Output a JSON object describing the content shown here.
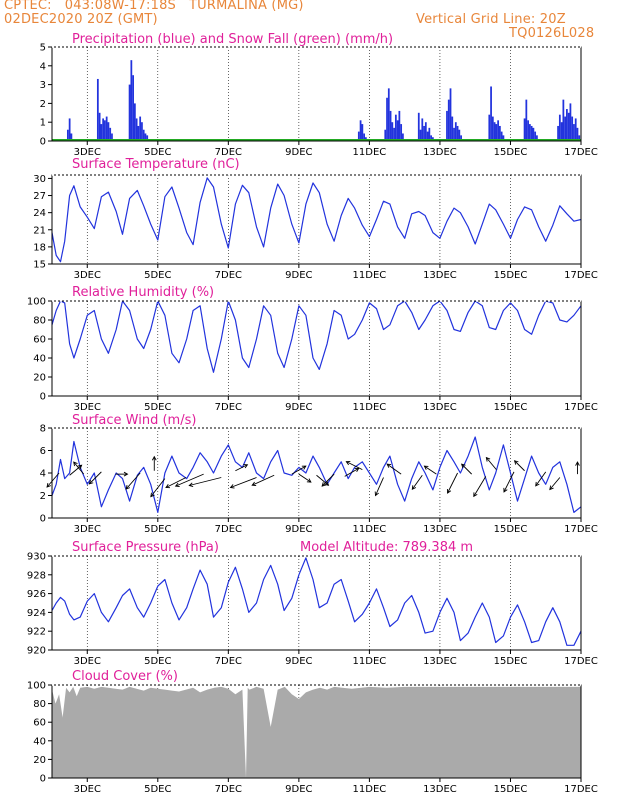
{
  "header": {
    "line1": "CPTEC:   043:08W-17:18S   TURMALINA (MG)",
    "line2": "02DEC2020 20Z (GMT)",
    "grid_note": "Vertical Grid Line: 20Z",
    "code": "TQ0126L028"
  },
  "colors": {
    "header": "#e8863a",
    "title": "#e0209a",
    "line": "#2233dd",
    "snow": "#22aa22",
    "cloud": "#aaaaaa"
  },
  "chart_data": [
    {
      "type": "bar",
      "title": "Precipitation (blue) and Snow Fall (green) (mm/h)",
      "x_ticks": [
        "3DEC",
        "5DEC",
        "7DEC",
        "9DEC",
        "11DEC",
        "13DEC",
        "15DEC",
        "17DEC"
      ],
      "ylim": [
        0,
        5
      ],
      "y_ticks": [
        0,
        1,
        2,
        3,
        4,
        5
      ],
      "series": [
        {
          "color": "blue",
          "x_days": [
            2.45,
            2.5,
            2.55,
            3.3,
            3.35,
            3.4,
            3.45,
            3.5,
            3.55,
            3.6,
            3.65,
            3.7,
            4.2,
            4.25,
            4.3,
            4.35,
            4.4,
            4.45,
            4.5,
            4.55,
            4.6,
            4.65,
            4.7,
            10.7,
            10.75,
            10.8,
            10.85,
            10.9,
            11.45,
            11.5,
            11.55,
            11.6,
            11.65,
            11.7,
            11.75,
            11.8,
            11.85,
            11.9,
            11.95,
            12.4,
            12.45,
            12.5,
            12.55,
            12.6,
            12.65,
            12.7,
            12.75,
            12.8,
            13.2,
            13.25,
            13.3,
            13.35,
            13.4,
            13.45,
            13.5,
            13.55,
            13.6,
            14.4,
            14.45,
            14.5,
            14.55,
            14.6,
            14.65,
            14.7,
            14.75,
            14.8,
            15.4,
            15.45,
            15.5,
            15.55,
            15.6,
            15.65,
            15.7,
            15.75,
            16.35,
            16.4,
            16.45,
            16.5,
            16.55,
            16.6,
            16.65,
            16.7,
            16.75,
            16.8,
            16.85,
            16.9,
            16.95
          ],
          "values": [
            0.6,
            1.2,
            0.4,
            3.3,
            1.5,
            0.9,
            1.2,
            1.1,
            1.3,
            1.0,
            0.7,
            0.4,
            3.0,
            4.3,
            3.5,
            2.0,
            1.2,
            0.8,
            1.3,
            1.0,
            0.6,
            0.4,
            0.3,
            0.5,
            1.1,
            0.9,
            0.4,
            0.2,
            0.6,
            2.3,
            2.8,
            1.6,
            1.0,
            0.7,
            1.4,
            1.1,
            1.6,
            0.9,
            0.4,
            1.5,
            0.6,
            1.2,
            0.8,
            1.0,
            0.5,
            0.7,
            0.3,
            0.2,
            1.6,
            2.2,
            2.8,
            1.3,
            0.7,
            1.0,
            0.8,
            0.6,
            0.3,
            1.4,
            2.9,
            1.3,
            1.0,
            0.9,
            1.1,
            0.8,
            0.5,
            0.3,
            1.2,
            2.2,
            1.1,
            0.9,
            0.8,
            0.7,
            0.5,
            0.3,
            0.8,
            1.4,
            1.0,
            2.2,
            1.3,
            1.7,
            1.5,
            2.0,
            1.3,
            0.9,
            1.2,
            0.7,
            0.3
          ]
        },
        {
          "color": "green",
          "x_days": [
            2.0,
            17.0
          ],
          "values": [
            0.05,
            0.05
          ]
        }
      ]
    },
    {
      "type": "line",
      "title": "Surface Temperature (nC)",
      "x_ticks": [
        "3DEC",
        "5DEC",
        "7DEC",
        "9DEC",
        "11DEC",
        "13DEC",
        "15DEC",
        "17DEC"
      ],
      "ylim": [
        15,
        30.6
      ],
      "y_ticks": [
        15,
        18,
        21,
        24,
        27,
        30
      ],
      "x_days": [
        2.0,
        2.12,
        2.24,
        2.36,
        2.5,
        2.62,
        2.8,
        3.0,
        3.2,
        3.4,
        3.6,
        3.82,
        4.0,
        4.2,
        4.42,
        4.6,
        4.8,
        5.0,
        5.2,
        5.4,
        5.6,
        5.82,
        6.0,
        6.2,
        6.4,
        6.58,
        6.8,
        7.0,
        7.2,
        7.4,
        7.58,
        7.8,
        8.0,
        8.2,
        8.4,
        8.58,
        8.8,
        9.0,
        9.2,
        9.4,
        9.58,
        9.8,
        10.0,
        10.2,
        10.4,
        10.58,
        10.8,
        11.0,
        11.2,
        11.4,
        11.58,
        11.8,
        12.0,
        12.2,
        12.4,
        12.58,
        12.8,
        13.0,
        13.2,
        13.4,
        13.58,
        13.8,
        14.0,
        14.2,
        14.4,
        14.58,
        14.8,
        15.0,
        15.2,
        15.4,
        15.6,
        15.8,
        16.0,
        16.2,
        16.4,
        16.6,
        16.8,
        17.0
      ],
      "y": [
        20.5,
        16.5,
        15.4,
        19.0,
        27.0,
        28.7,
        25.0,
        23.2,
        21.2,
        26.8,
        27.6,
        24.2,
        20.2,
        26.5,
        27.9,
        25.2,
        22.0,
        19.2,
        26.8,
        28.5,
        24.8,
        20.5,
        18.4,
        25.8,
        30.1,
        28.5,
        22.0,
        17.8,
        25.5,
        28.8,
        27.5,
        21.5,
        18.0,
        24.8,
        29.0,
        27.0,
        22.0,
        18.7,
        25.5,
        29.2,
        27.5,
        22.0,
        19.0,
        23.5,
        26.5,
        24.8,
        21.8,
        19.8,
        22.8,
        26.0,
        25.5,
        21.5,
        19.5,
        23.8,
        24.2,
        23.5,
        20.5,
        19.5,
        22.5,
        24.8,
        24.0,
        21.5,
        18.5,
        22.0,
        25.5,
        24.5,
        22.0,
        19.5,
        22.8,
        25.0,
        24.5,
        21.5,
        19.0,
        21.8,
        25.2,
        23.8,
        22.5,
        22.8
      ]
    },
    {
      "type": "line",
      "title": "Relative Humidity (%)",
      "x_ticks": [
        "3DEC",
        "5DEC",
        "7DEC",
        "9DEC",
        "11DEC",
        "13DEC",
        "15DEC",
        "17DEC"
      ],
      "ylim": [
        0,
        100
      ],
      "y_ticks": [
        0,
        20,
        40,
        60,
        80,
        100
      ],
      "x_days": [
        2.0,
        2.12,
        2.24,
        2.36,
        2.5,
        2.62,
        2.8,
        3.0,
        3.2,
        3.4,
        3.6,
        3.82,
        4.0,
        4.2,
        4.42,
        4.6,
        4.8,
        5.0,
        5.2,
        5.4,
        5.6,
        5.82,
        6.0,
        6.2,
        6.4,
        6.58,
        6.8,
        7.0,
        7.2,
        7.4,
        7.58,
        7.8,
        8.0,
        8.2,
        8.4,
        8.58,
        8.8,
        9.0,
        9.2,
        9.4,
        9.58,
        9.8,
        10.0,
        10.2,
        10.4,
        10.58,
        10.8,
        11.0,
        11.2,
        11.4,
        11.58,
        11.8,
        12.0,
        12.2,
        12.4,
        12.58,
        12.8,
        13.0,
        13.2,
        13.4,
        13.58,
        13.8,
        14.0,
        14.2,
        14.4,
        14.58,
        14.8,
        15.0,
        15.2,
        15.4,
        15.6,
        15.8,
        16.0,
        16.2,
        16.4,
        16.6,
        16.8,
        17.0
      ],
      "y": [
        75,
        90,
        100,
        98,
        55,
        40,
        60,
        85,
        90,
        60,
        45,
        70,
        100,
        90,
        60,
        50,
        70,
        100,
        85,
        45,
        35,
        60,
        90,
        95,
        50,
        25,
        60,
        100,
        80,
        40,
        30,
        60,
        95,
        85,
        45,
        30,
        60,
        95,
        85,
        40,
        28,
        55,
        90,
        85,
        60,
        65,
        80,
        98,
        92,
        70,
        75,
        95,
        100,
        88,
        70,
        80,
        95,
        100,
        90,
        70,
        68,
        88,
        100,
        95,
        72,
        70,
        90,
        98,
        90,
        70,
        65,
        85,
        100,
        98,
        80,
        78,
        85,
        95
      ]
    },
    {
      "type": "line",
      "title": "Surface Wind (m/s)",
      "x_ticks": [
        "3DEC",
        "5DEC",
        "7DEC",
        "9DEC",
        "11DEC",
        "13DEC",
        "15DEC",
        "17DEC"
      ],
      "ylim": [
        0,
        8
      ],
      "y_ticks": [
        0,
        2,
        4,
        6,
        8
      ],
      "x_days": [
        2.0,
        2.12,
        2.24,
        2.36,
        2.5,
        2.62,
        2.8,
        3.0,
        3.2,
        3.4,
        3.6,
        3.82,
        4.0,
        4.2,
        4.42,
        4.6,
        4.8,
        5.0,
        5.2,
        5.4,
        5.6,
        5.82,
        6.0,
        6.2,
        6.4,
        6.58,
        6.8,
        7.0,
        7.2,
        7.4,
        7.58,
        7.8,
        8.0,
        8.2,
        8.4,
        8.58,
        8.8,
        9.0,
        9.2,
        9.4,
        9.58,
        9.8,
        10.0,
        10.2,
        10.4,
        10.58,
        10.8,
        11.0,
        11.2,
        11.4,
        11.58,
        11.8,
        12.0,
        12.2,
        12.4,
        12.58,
        12.8,
        13.0,
        13.2,
        13.4,
        13.58,
        13.8,
        14.0,
        14.2,
        14.4,
        14.58,
        14.8,
        15.0,
        15.2,
        15.4,
        15.6,
        15.8,
        16.0,
        16.2,
        16.4,
        16.6,
        16.8,
        17.0
      ],
      "y": [
        2.0,
        3.0,
        5.2,
        3.5,
        4.0,
        6.8,
        4.5,
        3.0,
        4.0,
        1.0,
        2.5,
        4.0,
        3.5,
        1.5,
        3.8,
        4.5,
        3.0,
        0.5,
        4.0,
        5.5,
        4.0,
        3.5,
        4.5,
        5.8,
        5.0,
        4.0,
        5.5,
        6.5,
        5.0,
        4.5,
        5.8,
        4.0,
        3.5,
        5.0,
        6.0,
        4.0,
        3.8,
        4.5,
        4.0,
        5.5,
        4.5,
        3.0,
        4.0,
        5.0,
        3.5,
        4.5,
        5.0,
        4.0,
        3.0,
        4.5,
        5.5,
        3.0,
        1.5,
        3.5,
        5.0,
        4.0,
        2.5,
        4.5,
        6.0,
        5.0,
        4.0,
        5.5,
        7.2,
        4.5,
        2.5,
        4.0,
        6.5,
        4.0,
        1.5,
        3.5,
        5.5,
        4.0,
        3.0,
        4.5,
        5.0,
        3.0,
        0.5,
        1.0
      ]
    },
    {
      "type": "line",
      "title": "Surface Pressure (hPa)",
      "annotation": "Model Altitude: 789.384 m",
      "x_ticks": [
        "3DEC",
        "5DEC",
        "7DEC",
        "9DEC",
        "11DEC",
        "13DEC",
        "15DEC",
        "17DEC"
      ],
      "ylim": [
        920,
        930
      ],
      "y_ticks": [
        920,
        922,
        924,
        926,
        928,
        930
      ],
      "x_days": [
        2.0,
        2.12,
        2.24,
        2.36,
        2.5,
        2.62,
        2.8,
        3.0,
        3.2,
        3.4,
        3.6,
        3.82,
        4.0,
        4.2,
        4.42,
        4.6,
        4.8,
        5.0,
        5.2,
        5.4,
        5.6,
        5.82,
        6.0,
        6.2,
        6.4,
        6.58,
        6.8,
        7.0,
        7.2,
        7.4,
        7.58,
        7.8,
        8.0,
        8.2,
        8.4,
        8.58,
        8.8,
        9.0,
        9.2,
        9.4,
        9.58,
        9.8,
        10.0,
        10.2,
        10.4,
        10.58,
        10.8,
        11.0,
        11.2,
        11.4,
        11.58,
        11.8,
        12.0,
        12.2,
        12.4,
        12.58,
        12.8,
        13.0,
        13.2,
        13.4,
        13.58,
        13.8,
        14.0,
        14.2,
        14.4,
        14.58,
        14.8,
        15.0,
        15.2,
        15.4,
        15.6,
        15.8,
        16.0,
        16.2,
        16.4,
        16.6,
        16.8,
        17.0
      ],
      "y": [
        924.2,
        925.0,
        925.6,
        925.2,
        923.8,
        923.2,
        923.5,
        925.2,
        926.0,
        924.0,
        923.0,
        924.5,
        925.8,
        926.5,
        924.5,
        923.5,
        925.0,
        926.8,
        927.5,
        925.0,
        923.2,
        924.5,
        926.5,
        928.5,
        927.0,
        923.5,
        924.5,
        927.2,
        928.8,
        926.5,
        924.0,
        925.0,
        927.5,
        929.0,
        927.0,
        924.2,
        925.5,
        928.0,
        929.8,
        927.5,
        924.5,
        925.0,
        927.0,
        927.5,
        925.2,
        923.0,
        923.8,
        925.0,
        926.5,
        924.5,
        922.5,
        923.2,
        925.0,
        925.8,
        924.0,
        921.8,
        922.0,
        924.0,
        925.5,
        924.0,
        921.0,
        921.8,
        923.5,
        925.0,
        923.5,
        920.8,
        921.5,
        923.5,
        924.8,
        923.0,
        920.8,
        921.0,
        923.0,
        924.5,
        923.0,
        920.5,
        920.5,
        922.0
      ]
    },
    {
      "type": "area",
      "title": "Cloud Cover (%)",
      "x_ticks": [
        "3DEC",
        "5DEC",
        "7DEC",
        "9DEC",
        "11DEC",
        "13DEC",
        "15DEC",
        "17DEC"
      ],
      "ylim": [
        0,
        100
      ],
      "y_ticks": [
        0,
        20,
        40,
        60,
        80,
        100
      ],
      "x_days": [
        2.0,
        2.1,
        2.2,
        2.3,
        2.4,
        2.5,
        2.6,
        2.7,
        2.8,
        3.0,
        3.2,
        3.4,
        3.6,
        3.8,
        4.0,
        4.2,
        4.4,
        4.6,
        4.8,
        5.0,
        5.2,
        5.4,
        5.6,
        5.8,
        6.0,
        6.2,
        6.4,
        6.6,
        6.8,
        7.0,
        7.2,
        7.4,
        7.5,
        7.55,
        7.6,
        7.8,
        8.0,
        8.2,
        8.4,
        8.6,
        8.8,
        9.0,
        9.2,
        9.4,
        9.6,
        9.8,
        10.0,
        10.5,
        11.0,
        11.5,
        12.0,
        13.0,
        14.0,
        15.0,
        16.0,
        17.0
      ],
      "y": [
        95,
        80,
        90,
        65,
        97,
        92,
        98,
        88,
        97,
        98,
        96,
        98,
        97,
        96,
        95,
        98,
        96,
        94,
        97,
        96,
        95,
        94,
        93,
        95,
        97,
        92,
        95,
        97,
        98,
        96,
        90,
        95,
        0,
        97,
        95,
        98,
        96,
        55,
        95,
        98,
        90,
        85,
        92,
        95,
        97,
        95,
        98,
        96,
        98,
        97,
        98,
        98,
        98,
        98,
        98,
        98
      ]
    }
  ]
}
